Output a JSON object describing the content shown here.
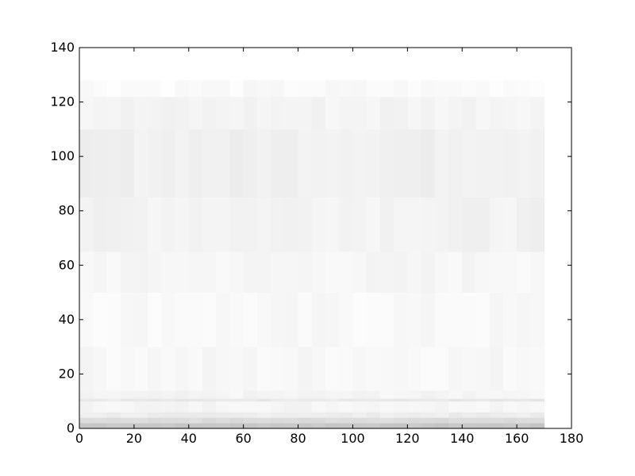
{
  "chart_data": {
    "type": "heatmap",
    "title": "",
    "xlabel": "",
    "ylabel": "",
    "xlim": [
      0,
      180
    ],
    "ylim": [
      0,
      140
    ],
    "x_ticks": [
      0,
      20,
      40,
      60,
      80,
      100,
      120,
      140,
      160,
      180
    ],
    "y_ticks": [
      0,
      20,
      40,
      60,
      80,
      100,
      120,
      140
    ],
    "x_tick_labels": [
      "0",
      "20",
      "40",
      "60",
      "80",
      "100",
      "120",
      "140",
      "160",
      "180"
    ],
    "y_tick_labels": [
      "0",
      "20",
      "40",
      "60",
      "80",
      "100",
      "120",
      "140"
    ],
    "image_extent": {
      "x": [
        0,
        170
      ],
      "y": [
        0,
        128
      ]
    },
    "colormap": "gray_r",
    "grid": false,
    "legend": "none",
    "intensity_bands": [
      {
        "y": [
          0,
          2
        ],
        "value": 0.22
      },
      {
        "y": [
          2,
          4
        ],
        "value": 0.14
      },
      {
        "y": [
          4,
          6
        ],
        "value": 0.07
      },
      {
        "y": [
          6,
          10
        ],
        "value": 0.04
      },
      {
        "y": [
          10,
          11
        ],
        "value": 0.09
      },
      {
        "y": [
          11,
          14
        ],
        "value": 0.04
      },
      {
        "y": [
          14,
          30
        ],
        "value": 0.03
      },
      {
        "y": [
          30,
          50
        ],
        "value": 0.025
      },
      {
        "y": [
          50,
          65
        ],
        "value": 0.035
      },
      {
        "y": [
          65,
          85
        ],
        "value": 0.05
      },
      {
        "y": [
          85,
          110
        ],
        "value": 0.06
      },
      {
        "y": [
          110,
          122
        ],
        "value": 0.045
      },
      {
        "y": [
          122,
          128
        ],
        "value": 0.02
      }
    ],
    "colors": {
      "frame": "#000000",
      "background": "#ffffff",
      "ink": "#000000"
    }
  }
}
